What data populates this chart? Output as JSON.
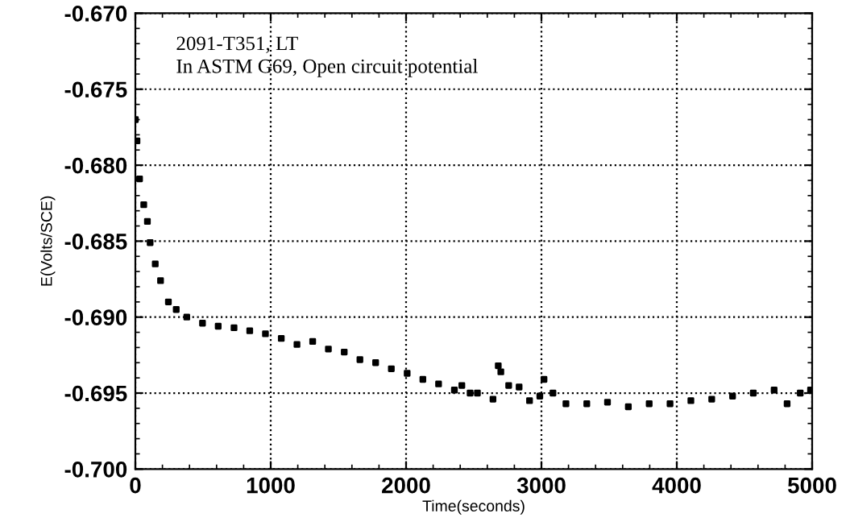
{
  "chart_data": {
    "type": "scatter",
    "xlabel": "Time(seconds)",
    "ylabel": "E(Volts/SCE)",
    "annotations": [
      "2091-T351, LT",
      "In ASTM G69, Open circuit potential"
    ],
    "x": [
      0,
      12,
      31,
      62,
      89,
      109,
      147,
      186,
      244,
      302,
      380,
      496,
      612,
      729,
      845,
      961,
      1078,
      1194,
      1310,
      1426,
      1543,
      1659,
      1775,
      1891,
      2008,
      2124,
      2240,
      2357,
      2412,
      2473,
      2527,
      2642,
      2681,
      2700,
      2758,
      2835,
      2912,
      2988,
      3019,
      3085,
      3181,
      3335,
      3488,
      3642,
      3796,
      3950,
      4104,
      4258,
      4412,
      4565,
      4719,
      4815,
      4912,
      4988
    ],
    "series": [
      {
        "color": "#000000",
        "values": [
          -0.677,
          -0.6784,
          -0.6809,
          -0.6826,
          -0.6837,
          -0.6851,
          -0.6865,
          -0.6876,
          -0.689,
          -0.6895,
          -0.69,
          -0.6904,
          -0.6906,
          -0.6907,
          -0.6909,
          -0.6911,
          -0.6914,
          -0.6918,
          -0.6916,
          -0.6921,
          -0.6923,
          -0.6928,
          -0.693,
          -0.6934,
          -0.6937,
          -0.6941,
          -0.6944,
          -0.6948,
          -0.6945,
          -0.695,
          -0.695,
          -0.6954,
          -0.6932,
          -0.6936,
          -0.6945,
          -0.6946,
          -0.6955,
          -0.6952,
          -0.6941,
          -0.695,
          -0.6957,
          -0.6957,
          -0.6956,
          -0.6959,
          -0.6957,
          -0.6957,
          -0.6955,
          -0.6954,
          -0.6952,
          -0.695,
          -0.6948,
          -0.6957,
          -0.695,
          -0.6948
        ]
      }
    ],
    "xlim": [
      0,
      5000
    ],
    "xticks": [
      0,
      1000,
      2000,
      3000,
      4000,
      5000
    ],
    "ylim": [
      -0.7,
      -0.67
    ],
    "yticks": [
      {
        "value": -0.7,
        "label": "-0.700"
      },
      {
        "value": -0.695,
        "label": "-0.695"
      },
      {
        "value": -0.69,
        "label": "-0.690"
      },
      {
        "value": -0.685,
        "label": "-0.685"
      },
      {
        "value": -0.68,
        "label": "-0.680"
      },
      {
        "value": -0.675,
        "label": "-0.675"
      },
      {
        "value": -0.67,
        "label": "-0.670"
      }
    ],
    "grid": true,
    "marker": "square"
  }
}
